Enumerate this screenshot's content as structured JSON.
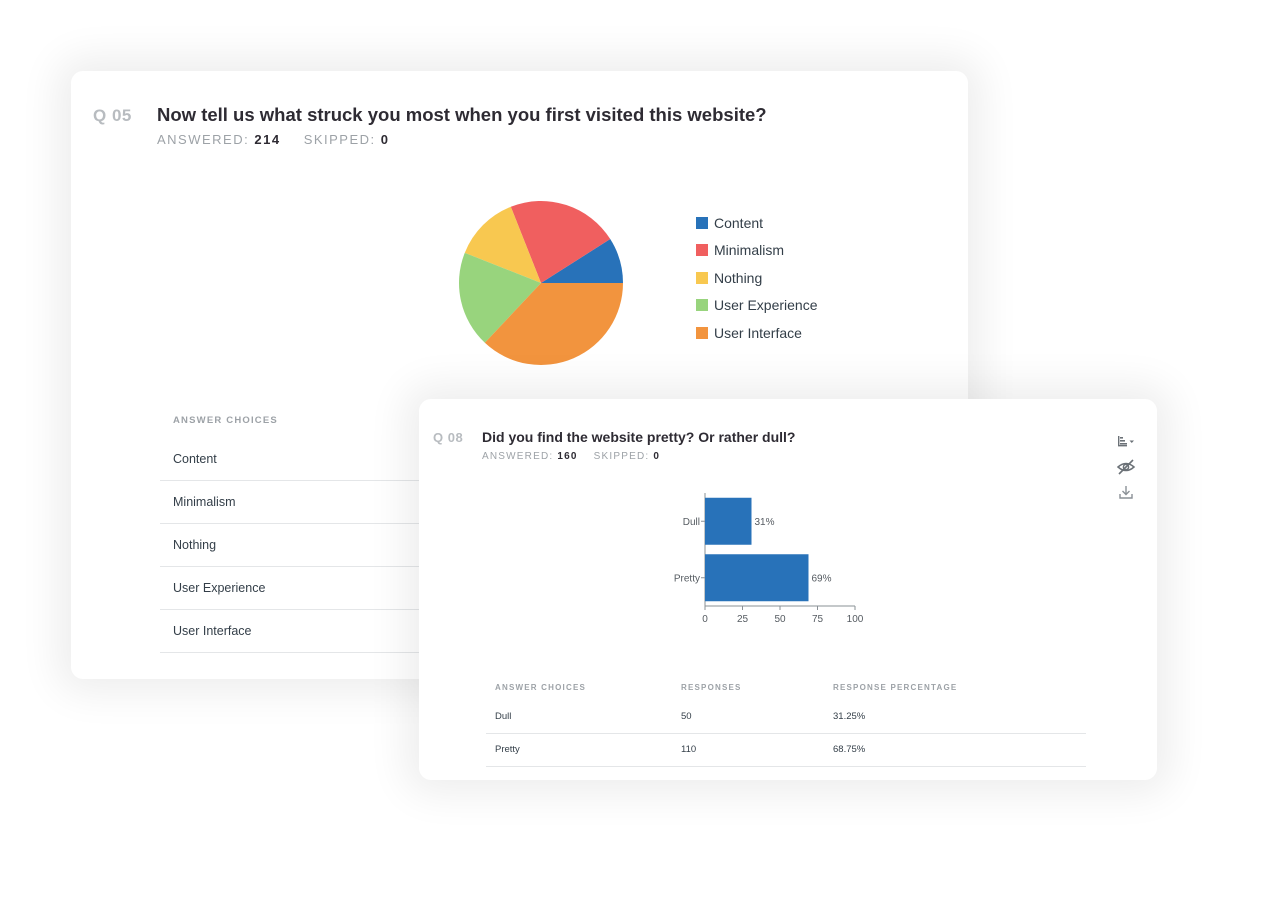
{
  "q05": {
    "number": "Q 05",
    "title": "Now tell us what struck you most when you first visited this website?",
    "answered_label": "ANSWERED:",
    "answered_value": "214",
    "skipped_label": "SKIPPED:",
    "skipped_value": "0",
    "answer_choices_header": "ANSWER CHOICES",
    "answer_rows": [
      "Content",
      "Minimalism",
      "Nothing",
      "User Experience",
      "User Interface"
    ]
  },
  "q08": {
    "number": "Q 08",
    "title": "Did you find the website pretty? Or rather dull?",
    "answered_label": "ANSWERED:",
    "answered_value": "160",
    "skipped_label": "SKIPPED:",
    "skipped_value": "0",
    "tools": [
      "bar-chart-sort-icon",
      "hide-eye-icon",
      "download-icon"
    ],
    "table": {
      "headers": [
        "ANSWER CHOICES",
        "RESPONSES",
        "RESPONSE PERCENTAGE"
      ],
      "rows": [
        {
          "choice": "Dull",
          "responses": "50",
          "percentage": "31.25%"
        },
        {
          "choice": "Pretty",
          "responses": "110",
          "percentage": "68.75%"
        }
      ]
    }
  },
  "chart_data": [
    {
      "type": "pie",
      "categories": [
        "Content",
        "Minimalism",
        "Nothing",
        "User Experience",
        "User Interface"
      ],
      "values": [
        9,
        22,
        13,
        19,
        37
      ],
      "colors": [
        "#2872b9",
        "#f05f5f",
        "#f8c850",
        "#98d47d",
        "#f2943e"
      ],
      "legend": "right"
    },
    {
      "type": "bar",
      "orientation": "horizontal",
      "categories": [
        "Dull",
        "Pretty"
      ],
      "values": [
        31,
        69
      ],
      "data_labels": [
        "31%",
        "69%"
      ],
      "xlim": [
        0,
        100
      ],
      "xticks": [
        "0",
        "25",
        "50",
        "75",
        "100"
      ],
      "color": "#2872b9",
      "grid": false
    }
  ]
}
